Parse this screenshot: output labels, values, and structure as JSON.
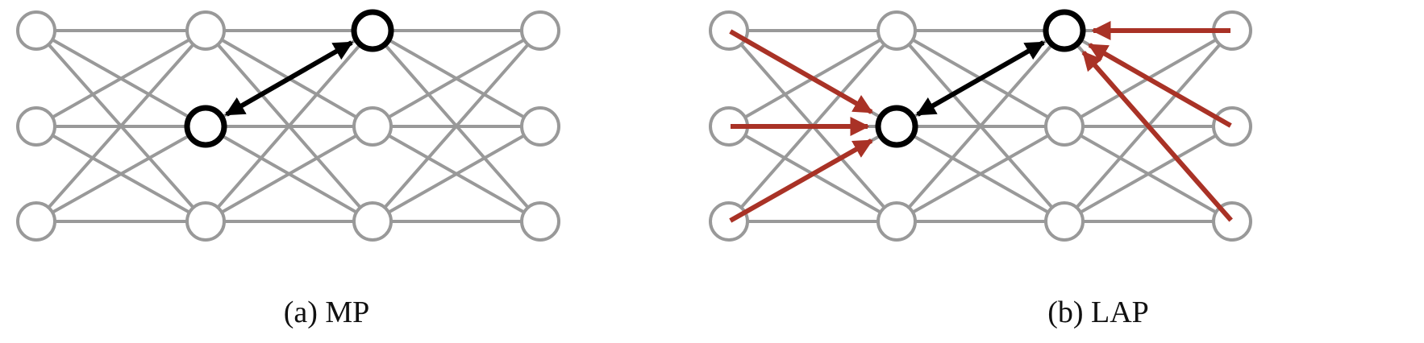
{
  "colors": {
    "edge": "#999999",
    "node_stroke": "#999999",
    "highlight": "#000000",
    "arrow_red": "#a93226",
    "background": "#ffffff"
  },
  "panels": [
    {
      "id": "mp",
      "caption": "(a) MP",
      "grid": {
        "columns": 4,
        "rows": 3
      },
      "highlighted_nodes": [
        [
          1,
          1
        ],
        [
          2,
          0
        ]
      ],
      "black_arrows": [
        {
          "from": [
            2,
            0
          ],
          "to": [
            1,
            1
          ],
          "bidirectional": true
        }
      ],
      "red_arrows": []
    },
    {
      "id": "lap",
      "caption": "(b) LAP",
      "grid": {
        "columns": 4,
        "rows": 3
      },
      "highlighted_nodes": [
        [
          1,
          1
        ],
        [
          2,
          0
        ]
      ],
      "black_arrows": [
        {
          "from": [
            2,
            0
          ],
          "to": [
            1,
            1
          ],
          "bidirectional": true
        }
      ],
      "red_arrows": [
        {
          "from": [
            0,
            0
          ],
          "to": [
            1,
            1
          ]
        },
        {
          "from": [
            0,
            1
          ],
          "to": [
            1,
            1
          ]
        },
        {
          "from": [
            0,
            2
          ],
          "to": [
            1,
            1
          ]
        },
        {
          "from": [
            3,
            0
          ],
          "to": [
            2,
            0
          ]
        },
        {
          "from": [
            3,
            1
          ],
          "to": [
            2,
            0
          ]
        },
        {
          "from": [
            3,
            2
          ],
          "to": [
            2,
            0
          ]
        }
      ]
    }
  ]
}
